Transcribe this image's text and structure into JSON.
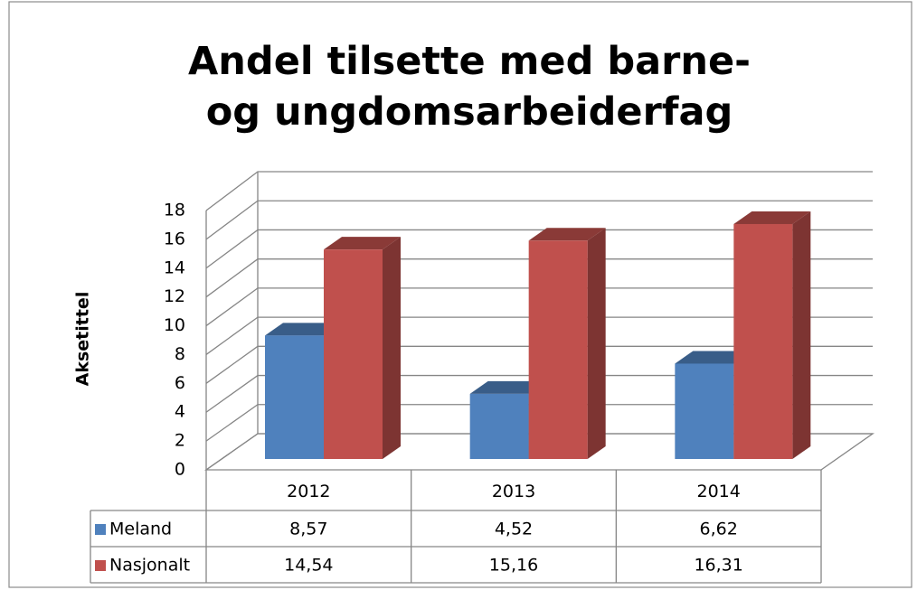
{
  "chart_data": {
    "type": "bar3d",
    "title": "Andel tilsette med barne- og ungdomsarbeiderfag",
    "y_label": "Aksetittel",
    "categories": [
      "2012",
      "2013",
      "2014"
    ],
    "series": [
      {
        "name": "Meland",
        "color": "#4f81bd",
        "values": [
          8.57,
          4.52,
          6.62
        ],
        "value_labels": [
          "8,57",
          "4,52",
          "6,62"
        ]
      },
      {
        "name": "Nasjonalt",
        "color": "#c0504d",
        "values": [
          14.54,
          15.16,
          16.31
        ],
        "value_labels": [
          "14,54",
          "15,16",
          "16,31"
        ]
      }
    ],
    "ylim": [
      0,
      18
    ],
    "yticks": [
      0,
      2,
      4,
      6,
      8,
      10,
      12,
      14,
      16,
      18
    ],
    "grid": true,
    "legend": "data-table"
  }
}
